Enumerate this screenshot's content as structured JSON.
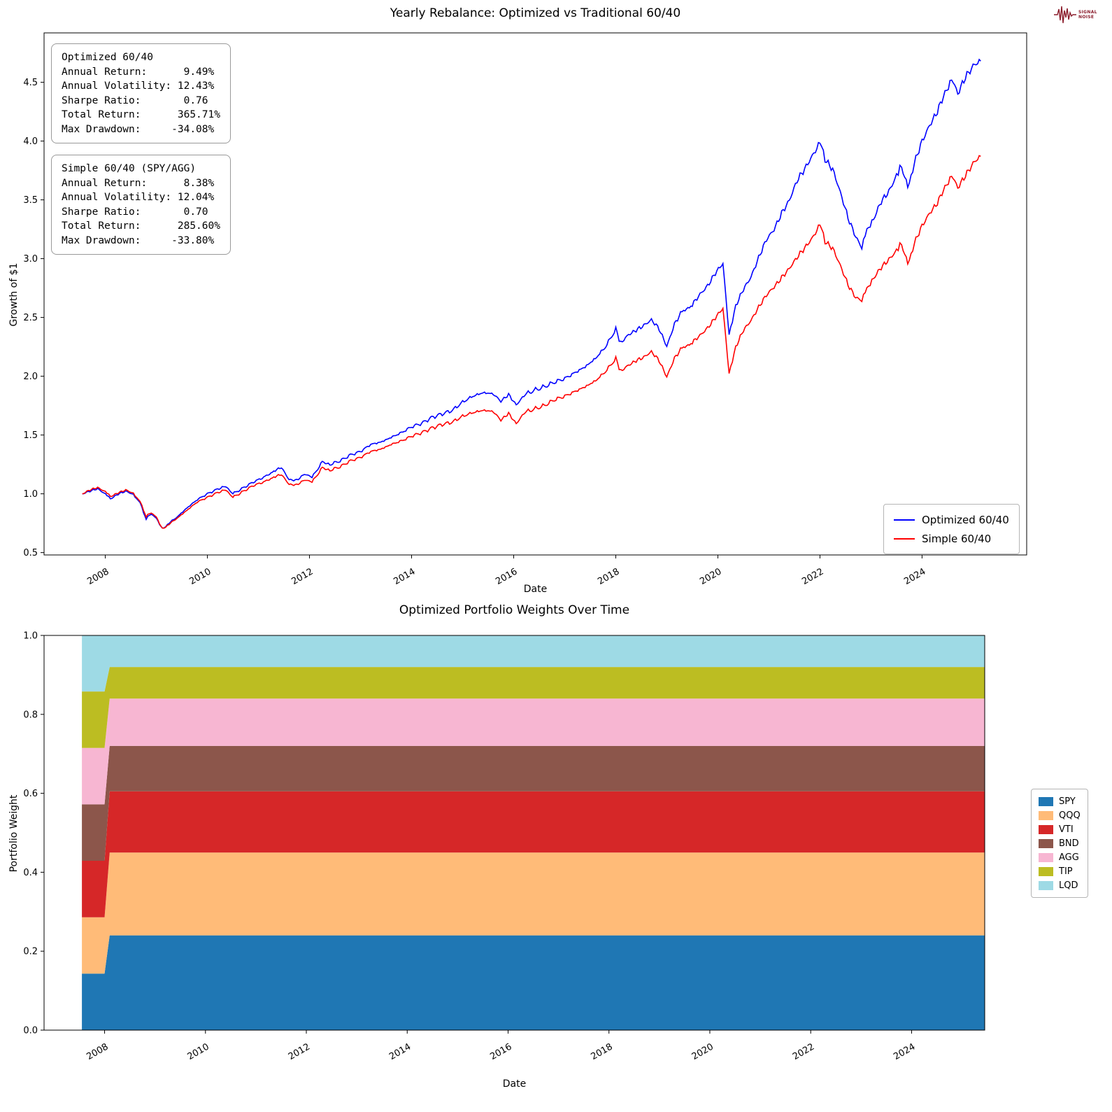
{
  "logo": {
    "line1": "SIGNAL",
    "line2": "NOISE",
    "color": "#8b1d2c"
  },
  "chart_data": [
    {
      "type": "line",
      "title": "Yearly Rebalance: Optimized vs Traditional 60/40",
      "xlabel": "Date",
      "ylabel": "Growth of $1",
      "xlim": [
        2006.8,
        2026.05
      ],
      "ylim": [
        0.48,
        4.92
      ],
      "xticks": [
        2008,
        2010,
        2012,
        2014,
        2016,
        2018,
        2020,
        2022,
        2024
      ],
      "yticks": [
        0.5,
        1.0,
        1.5,
        2.0,
        2.5,
        3.0,
        3.5,
        4.0,
        4.5
      ],
      "legend_position": "lower right",
      "stat_boxes": [
        {
          "lines": [
            "Optimized 60/40",
            "Annual Return:      9.49%",
            "Annual Volatility: 12.43%",
            "Sharpe Ratio:       0.76",
            "Total Return:      365.71%",
            "Max Drawdown:     -34.08%"
          ]
        },
        {
          "lines": [
            "Simple 60/40 (SPY/AGG)",
            "Annual Return:      8.38%",
            "Annual Volatility: 12.04%",
            "Sharpe Ratio:       0.70",
            "Total Return:      285.60%",
            "Max Drawdown:     -33.80%"
          ]
        }
      ],
      "series": [
        {
          "name": "Optimized 60/40",
          "color": "#0000ff",
          "points": [
            [
              2007.55,
              1.0
            ],
            [
              2007.7,
              1.02
            ],
            [
              2007.85,
              1.04
            ],
            [
              2008.0,
              1.0
            ],
            [
              2008.1,
              0.96
            ],
            [
              2008.25,
              1.0
            ],
            [
              2008.4,
              1.02
            ],
            [
              2008.55,
              0.99
            ],
            [
              2008.68,
              0.93
            ],
            [
              2008.75,
              0.84
            ],
            [
              2008.8,
              0.79
            ],
            [
              2008.9,
              0.83
            ],
            [
              2009.0,
              0.79
            ],
            [
              2009.12,
              0.7
            ],
            [
              2009.25,
              0.75
            ],
            [
              2009.4,
              0.8
            ],
            [
              2009.6,
              0.88
            ],
            [
              2009.8,
              0.95
            ],
            [
              2010.0,
              1.0
            ],
            [
              2010.2,
              1.04
            ],
            [
              2010.35,
              1.07
            ],
            [
              2010.5,
              1.0
            ],
            [
              2010.7,
              1.05
            ],
            [
              2010.9,
              1.1
            ],
            [
              2011.1,
              1.14
            ],
            [
              2011.3,
              1.19
            ],
            [
              2011.45,
              1.22
            ],
            [
              2011.6,
              1.12
            ],
            [
              2011.75,
              1.12
            ],
            [
              2011.9,
              1.17
            ],
            [
              2012.05,
              1.14
            ],
            [
              2012.25,
              1.27
            ],
            [
              2012.4,
              1.25
            ],
            [
              2012.6,
              1.28
            ],
            [
              2012.8,
              1.33
            ],
            [
              2013.0,
              1.36
            ],
            [
              2013.2,
              1.42
            ],
            [
              2013.4,
              1.44
            ],
            [
              2013.6,
              1.48
            ],
            [
              2013.8,
              1.52
            ],
            [
              2014.0,
              1.57
            ],
            [
              2014.2,
              1.6
            ],
            [
              2014.4,
              1.65
            ],
            [
              2014.6,
              1.68
            ],
            [
              2014.8,
              1.71
            ],
            [
              2015.0,
              1.78
            ],
            [
              2015.2,
              1.83
            ],
            [
              2015.4,
              1.86
            ],
            [
              2015.6,
              1.85
            ],
            [
              2015.75,
              1.78
            ],
            [
              2015.9,
              1.84
            ],
            [
              2016.05,
              1.76
            ],
            [
              2016.2,
              1.84
            ],
            [
              2016.4,
              1.88
            ],
            [
              2016.6,
              1.91
            ],
            [
              2016.8,
              1.95
            ],
            [
              2017.0,
              1.98
            ],
            [
              2017.2,
              2.03
            ],
            [
              2017.4,
              2.08
            ],
            [
              2017.6,
              2.15
            ],
            [
              2017.8,
              2.25
            ],
            [
              2018.0,
              2.4
            ],
            [
              2018.1,
              2.28
            ],
            [
              2018.25,
              2.36
            ],
            [
              2018.4,
              2.4
            ],
            [
              2018.55,
              2.43
            ],
            [
              2018.7,
              2.47
            ],
            [
              2018.85,
              2.4
            ],
            [
              2019.0,
              2.26
            ],
            [
              2019.15,
              2.45
            ],
            [
              2019.3,
              2.55
            ],
            [
              2019.5,
              2.6
            ],
            [
              2019.65,
              2.7
            ],
            [
              2019.8,
              2.78
            ],
            [
              2019.95,
              2.88
            ],
            [
              2020.1,
              2.95
            ],
            [
              2020.22,
              2.35
            ],
            [
              2020.35,
              2.6
            ],
            [
              2020.5,
              2.75
            ],
            [
              2020.65,
              2.85
            ],
            [
              2020.8,
              3.0
            ],
            [
              2020.95,
              3.15
            ],
            [
              2021.1,
              3.25
            ],
            [
              2021.25,
              3.4
            ],
            [
              2021.4,
              3.5
            ],
            [
              2021.55,
              3.65
            ],
            [
              2021.7,
              3.75
            ],
            [
              2021.85,
              3.88
            ],
            [
              2022.0,
              4.0
            ],
            [
              2022.1,
              3.85
            ],
            [
              2022.25,
              3.75
            ],
            [
              2022.4,
              3.55
            ],
            [
              2022.55,
              3.35
            ],
            [
              2022.7,
              3.2
            ],
            [
              2022.82,
              3.1
            ],
            [
              2022.92,
              3.25
            ],
            [
              2023.05,
              3.32
            ],
            [
              2023.2,
              3.48
            ],
            [
              2023.35,
              3.58
            ],
            [
              2023.5,
              3.72
            ],
            [
              2023.6,
              3.78
            ],
            [
              2023.72,
              3.6
            ],
            [
              2023.85,
              3.8
            ],
            [
              2024.0,
              4.0
            ],
            [
              2024.15,
              4.15
            ],
            [
              2024.3,
              4.26
            ],
            [
              2024.45,
              4.4
            ],
            [
              2024.58,
              4.52
            ],
            [
              2024.7,
              4.4
            ],
            [
              2024.85,
              4.56
            ],
            [
              2025.0,
              4.65
            ],
            [
              2025.15,
              4.68
            ]
          ]
        },
        {
          "name": "Simple 60/40",
          "color": "#ff0000",
          "points": [
            [
              2007.55,
              1.0
            ],
            [
              2007.7,
              1.03
            ],
            [
              2007.85,
              1.05
            ],
            [
              2008.0,
              1.02
            ],
            [
              2008.1,
              0.98
            ],
            [
              2008.25,
              1.01
            ],
            [
              2008.4,
              1.03
            ],
            [
              2008.55,
              1.0
            ],
            [
              2008.68,
              0.94
            ],
            [
              2008.75,
              0.86
            ],
            [
              2008.8,
              0.81
            ],
            [
              2008.9,
              0.84
            ],
            [
              2009.0,
              0.8
            ],
            [
              2009.12,
              0.7
            ],
            [
              2009.25,
              0.74
            ],
            [
              2009.4,
              0.79
            ],
            [
              2009.6,
              0.86
            ],
            [
              2009.8,
              0.93
            ],
            [
              2010.0,
              0.97
            ],
            [
              2010.2,
              1.01
            ],
            [
              2010.35,
              1.04
            ],
            [
              2010.5,
              0.97
            ],
            [
              2010.7,
              1.02
            ],
            [
              2010.9,
              1.07
            ],
            [
              2011.1,
              1.1
            ],
            [
              2011.3,
              1.14
            ],
            [
              2011.45,
              1.16
            ],
            [
              2011.6,
              1.08
            ],
            [
              2011.75,
              1.08
            ],
            [
              2011.9,
              1.12
            ],
            [
              2012.05,
              1.1
            ],
            [
              2012.25,
              1.22
            ],
            [
              2012.4,
              1.2
            ],
            [
              2012.6,
              1.23
            ],
            [
              2012.8,
              1.28
            ],
            [
              2013.0,
              1.31
            ],
            [
              2013.2,
              1.36
            ],
            [
              2013.4,
              1.38
            ],
            [
              2013.6,
              1.42
            ],
            [
              2013.8,
              1.45
            ],
            [
              2014.0,
              1.49
            ],
            [
              2014.2,
              1.52
            ],
            [
              2014.4,
              1.56
            ],
            [
              2014.6,
              1.59
            ],
            [
              2014.8,
              1.61
            ],
            [
              2015.0,
              1.66
            ],
            [
              2015.2,
              1.69
            ],
            [
              2015.4,
              1.71
            ],
            [
              2015.6,
              1.7
            ],
            [
              2015.75,
              1.62
            ],
            [
              2015.9,
              1.68
            ],
            [
              2016.05,
              1.6
            ],
            [
              2016.2,
              1.69
            ],
            [
              2016.4,
              1.72
            ],
            [
              2016.6,
              1.75
            ],
            [
              2016.8,
              1.8
            ],
            [
              2017.0,
              1.83
            ],
            [
              2017.2,
              1.87
            ],
            [
              2017.4,
              1.91
            ],
            [
              2017.6,
              1.96
            ],
            [
              2017.8,
              2.04
            ],
            [
              2018.0,
              2.15
            ],
            [
              2018.1,
              2.04
            ],
            [
              2018.25,
              2.1
            ],
            [
              2018.4,
              2.14
            ],
            [
              2018.55,
              2.16
            ],
            [
              2018.7,
              2.2
            ],
            [
              2018.85,
              2.13
            ],
            [
              2019.0,
              2.0
            ],
            [
              2019.15,
              2.16
            ],
            [
              2019.3,
              2.24
            ],
            [
              2019.5,
              2.28
            ],
            [
              2019.65,
              2.35
            ],
            [
              2019.8,
              2.42
            ],
            [
              2019.95,
              2.5
            ],
            [
              2020.1,
              2.57
            ],
            [
              2020.22,
              2.02
            ],
            [
              2020.35,
              2.25
            ],
            [
              2020.5,
              2.4
            ],
            [
              2020.65,
              2.48
            ],
            [
              2020.8,
              2.58
            ],
            [
              2020.95,
              2.68
            ],
            [
              2021.1,
              2.76
            ],
            [
              2021.25,
              2.85
            ],
            [
              2021.4,
              2.92
            ],
            [
              2021.55,
              3.0
            ],
            [
              2021.7,
              3.08
            ],
            [
              2021.85,
              3.18
            ],
            [
              2022.0,
              3.3
            ],
            [
              2022.1,
              3.15
            ],
            [
              2022.25,
              3.08
            ],
            [
              2022.4,
              2.93
            ],
            [
              2022.55,
              2.78
            ],
            [
              2022.7,
              2.68
            ],
            [
              2022.82,
              2.65
            ],
            [
              2022.92,
              2.75
            ],
            [
              2023.05,
              2.82
            ],
            [
              2023.2,
              2.92
            ],
            [
              2023.35,
              3.0
            ],
            [
              2023.5,
              3.08
            ],
            [
              2023.6,
              3.12
            ],
            [
              2023.72,
              2.95
            ],
            [
              2023.85,
              3.12
            ],
            [
              2024.0,
              3.28
            ],
            [
              2024.15,
              3.4
            ],
            [
              2024.3,
              3.48
            ],
            [
              2024.45,
              3.6
            ],
            [
              2024.58,
              3.7
            ],
            [
              2024.7,
              3.6
            ],
            [
              2024.85,
              3.72
            ],
            [
              2025.0,
              3.82
            ],
            [
              2025.15,
              3.87
            ]
          ]
        }
      ]
    },
    {
      "type": "area",
      "title": "Optimized Portfolio Weights Over Time",
      "xlabel": "Date",
      "ylabel": "Portfolio Weight",
      "xlim": [
        2006.8,
        2025.45
      ],
      "ylim": [
        0,
        1
      ],
      "xticks": [
        2008,
        2010,
        2012,
        2014,
        2016,
        2018,
        2020,
        2022,
        2024
      ],
      "yticks": [
        0.0,
        0.2,
        0.4,
        0.6,
        0.8,
        1.0
      ],
      "legend_position": "right outside",
      "breakpoint_years": [
        2007.55,
        2008.0,
        2008.1,
        2025.45
      ],
      "series": [
        {
          "name": "SPY",
          "color": "#1f77b4",
          "weights": [
            0.143,
            0.24
          ]
        },
        {
          "name": "QQQ",
          "color": "#ffbb78",
          "weights": [
            0.143,
            0.21
          ]
        },
        {
          "name": "VTI",
          "color": "#d62728",
          "weights": [
            0.143,
            0.155
          ]
        },
        {
          "name": "BND",
          "color": "#8c564b",
          "weights": [
            0.143,
            0.115
          ]
        },
        {
          "name": "AGG",
          "color": "#f7b6d2",
          "weights": [
            0.143,
            0.12
          ]
        },
        {
          "name": "TIP",
          "color": "#bcbd22",
          "weights": [
            0.143,
            0.08
          ]
        },
        {
          "name": "LQD",
          "color": "#9edae5",
          "weights": [
            0.142,
            0.08
          ]
        }
      ]
    }
  ]
}
